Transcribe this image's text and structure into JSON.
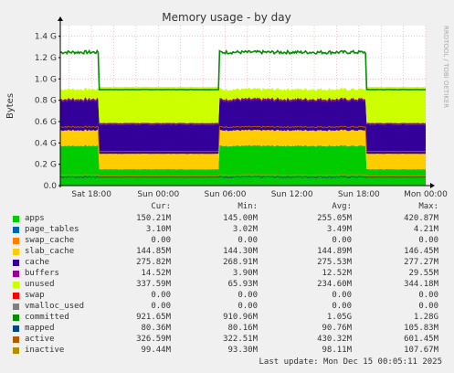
{
  "chart_data": {
    "type": "area",
    "title": "Memory usage - by day",
    "ylabel": "Bytes",
    "side_label": "RRDTOOL / TOBI OETIKER",
    "ylim": [
      0,
      1.5
    ],
    "yticks": [
      "0.0",
      "0.2 G",
      "0.4 G",
      "0.6 G",
      "0.8 G",
      "1.0 G",
      "1.2 G",
      "1.4 G"
    ],
    "ytick_values": [
      0,
      0.2,
      0.4,
      0.6,
      0.8,
      1.0,
      1.2,
      1.4
    ],
    "xticks": [
      "Sat 18:00",
      "Sun 00:00",
      "Sun 06:00",
      "Sun 12:00",
      "Sun 18:00",
      "Mon 00:00"
    ],
    "xtick_hours": [
      18,
      24,
      30,
      36,
      42,
      48
    ],
    "xlim_hours": [
      15.2,
      48
    ],
    "phases": [
      {
        "start": 15.2,
        "end": 18.6,
        "level": "high"
      },
      {
        "start": 18.6,
        "end": 29.4,
        "level": "low"
      },
      {
        "start": 29.4,
        "end": 42.6,
        "level": "high"
      },
      {
        "start": 42.6,
        "end": 48,
        "level": "low"
      }
    ],
    "stack_levels": {
      "high": {
        "apps": 0.37,
        "page_tables": 0.003,
        "swap_cache": 0.0,
        "slab_cache": 0.145,
        "cache": 0.28,
        "buffers": 0.015,
        "unused": 0.09,
        "committed": 1.25,
        "mapped": 0.08,
        "active": 0.55,
        "inactive": 0.1
      },
      "low": {
        "apps": 0.15,
        "page_tables": 0.003,
        "swap_cache": 0.0,
        "slab_cache": 0.145,
        "cache": 0.275,
        "buffers": 0.014,
        "unused": 0.338,
        "committed": 0.9,
        "mapped": 0.08,
        "active": 0.32,
        "inactive": 0.09
      }
    },
    "series": [
      {
        "name": "apps",
        "color": "#00cc00",
        "cur": "150.21M",
        "min": "145.00M",
        "avg": "255.05M",
        "max": "420.87M"
      },
      {
        "name": "page_tables",
        "color": "#0066b3",
        "cur": "3.10M",
        "min": "3.02M",
        "avg": "3.49M",
        "max": "4.21M"
      },
      {
        "name": "swap_cache",
        "color": "#ff8000",
        "cur": "0.00",
        "min": "0.00",
        "avg": "0.00",
        "max": "0.00"
      },
      {
        "name": "slab_cache",
        "color": "#ffcc00",
        "cur": "144.85M",
        "min": "144.30M",
        "avg": "144.89M",
        "max": "146.45M"
      },
      {
        "name": "cache",
        "color": "#330099",
        "cur": "275.82M",
        "min": "268.91M",
        "avg": "275.53M",
        "max": "277.27M"
      },
      {
        "name": "buffers",
        "color": "#990099",
        "cur": "14.52M",
        "min": "3.90M",
        "avg": "12.52M",
        "max": "29.55M"
      },
      {
        "name": "unused",
        "color": "#ccff00",
        "cur": "337.59M",
        "min": "65.93M",
        "avg": "234.60M",
        "max": "344.18M"
      },
      {
        "name": "swap",
        "color": "#ff0000",
        "cur": "0.00",
        "min": "0.00",
        "avg": "0.00",
        "max": "0.00"
      },
      {
        "name": "vmalloc_used",
        "color": "#808080",
        "cur": "0.00",
        "min": "0.00",
        "avg": "0.00",
        "max": "0.00"
      },
      {
        "name": "committed",
        "color": "#008f00",
        "cur": "921.65M",
        "min": "910.96M",
        "avg": "1.05G",
        "max": "1.28G"
      },
      {
        "name": "mapped",
        "color": "#00487d",
        "cur": "80.36M",
        "min": "80.16M",
        "avg": "90.76M",
        "max": "105.83M"
      },
      {
        "name": "active",
        "color": "#b35a00",
        "cur": "326.59M",
        "min": "322.51M",
        "avg": "430.32M",
        "max": "601.45M"
      },
      {
        "name": "inactive",
        "color": "#b38f00",
        "cur": "99.44M",
        "min": "93.30M",
        "avg": "98.11M",
        "max": "107.67M"
      }
    ]
  },
  "legend": {
    "cur": "Cur:",
    "min": "Min:",
    "avg": "Avg:",
    "max": "Max:"
  },
  "footer": "Last update: Mon Dec 15 00:05:11 2025"
}
